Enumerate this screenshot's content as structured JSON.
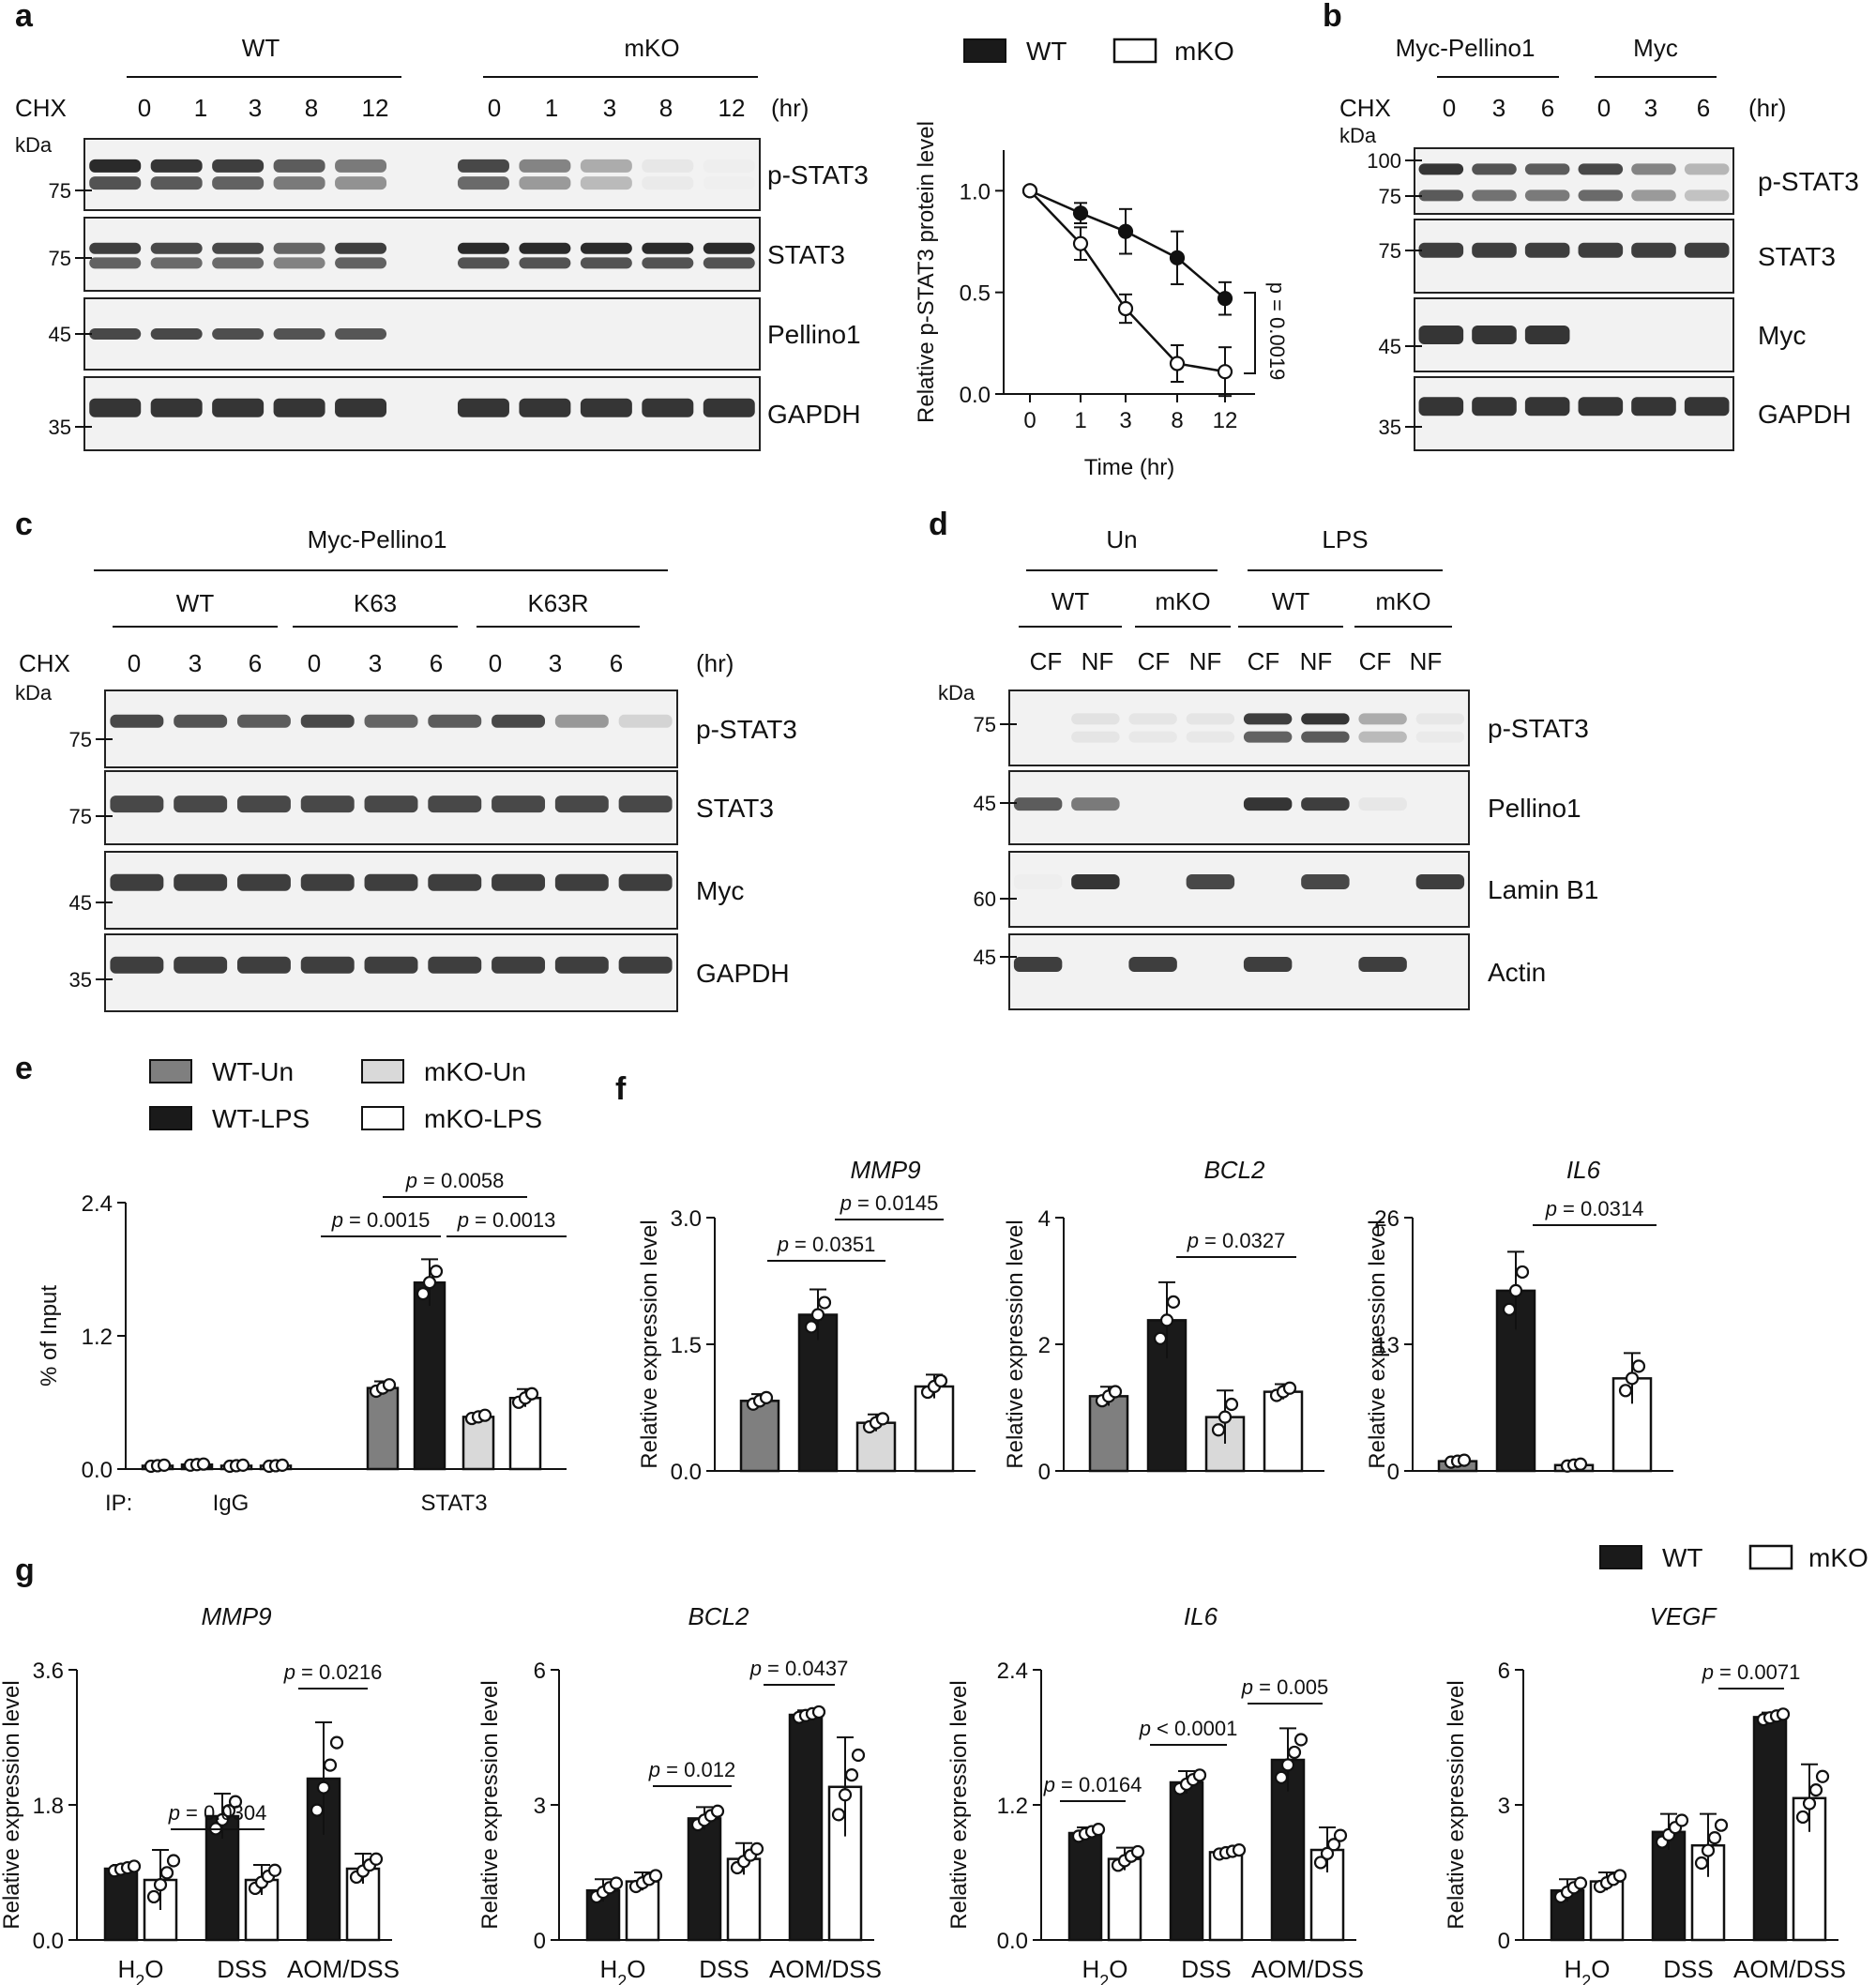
{
  "figure": {
    "panel_labels": [
      "a",
      "b",
      "c",
      "d",
      "e",
      "f",
      "g"
    ],
    "colors": {
      "wt": "#1a1a1a",
      "ko": "#ffffff",
      "wt_un": "#7f7f7f",
      "ko_un": "#d9d9d9",
      "blot_bg": "#f2f2f2",
      "band": "#2a2a2a"
    }
  },
  "panel_a": {
    "groups": [
      "WT",
      "mKO"
    ],
    "chx": "CHX",
    "hr": "(hr)",
    "kda": "kDa",
    "timepoints_wt": [
      "0",
      "1",
      "3",
      "8",
      "12"
    ],
    "timepoints_ko": [
      "0",
      "1",
      "3",
      "8",
      "12"
    ],
    "blots": [
      {
        "name": "p-STAT3",
        "mw": [
          "75"
        ]
      },
      {
        "name": "STAT3",
        "mw": [
          "75"
        ]
      },
      {
        "name": "Pellino1",
        "mw": [
          "45"
        ]
      },
      {
        "name": "GAPDH",
        "mw": [
          "35"
        ]
      }
    ]
  },
  "panel_b": {
    "groups": [
      "Myc-Pellino1",
      "Myc"
    ],
    "chx": "CHX",
    "hr": "(hr)",
    "kda": "kDa",
    "timepoints": [
      "0",
      "3",
      "6",
      "0",
      "3",
      "6"
    ],
    "blots": [
      {
        "name": "p-STAT3",
        "mw": [
          "100",
          "75"
        ]
      },
      {
        "name": "STAT3",
        "mw": [
          "75"
        ]
      },
      {
        "name": "Myc",
        "mw": [
          "45"
        ]
      },
      {
        "name": "GAPDH",
        "mw": [
          "35"
        ]
      }
    ]
  },
  "panel_c": {
    "title": "Myc-Pellino1",
    "groups": [
      "WT",
      "K63",
      "K63R"
    ],
    "chx": "CHX",
    "hr": "(hr)",
    "kda": "kDa",
    "timepoints": [
      "0",
      "3",
      "6",
      "0",
      "3",
      "6",
      "0",
      "3",
      "6"
    ],
    "blots": [
      {
        "name": "p-STAT3",
        "mw": [
          "75"
        ]
      },
      {
        "name": "STAT3",
        "mw": [
          "75"
        ]
      },
      {
        "name": "Myc",
        "mw": [
          "45"
        ]
      },
      {
        "name": "GAPDH",
        "mw": [
          "35"
        ]
      }
    ]
  },
  "panel_d": {
    "treatments": [
      "Un",
      "LPS"
    ],
    "genotypes": [
      "WT",
      "mKO",
      "WT",
      "mKO"
    ],
    "fractions": [
      "CF",
      "NF",
      "CF",
      "NF",
      "CF",
      "NF",
      "CF",
      "NF"
    ],
    "kda": "kDa",
    "blots": [
      {
        "name": "p-STAT3",
        "mw": [
          "75"
        ]
      },
      {
        "name": "Pellino1",
        "mw": [
          "45"
        ]
      },
      {
        "name": "Lamin B1",
        "mw": [
          "60"
        ]
      },
      {
        "name": "Actin",
        "mw": [
          "45"
        ]
      }
    ]
  },
  "chart_data": [
    {
      "id": "a_line",
      "type": "line",
      "ylabel": "Relative p-STAT3 protein level",
      "xlabel": "Time (hr)",
      "ylim": [
        0,
        1.2
      ],
      "yticks": [
        "0.0",
        "0.5",
        "1.0"
      ],
      "categories": [
        "0",
        "1",
        "3",
        "8",
        "12"
      ],
      "legend": [
        "WT",
        "mKO"
      ],
      "series": [
        {
          "name": "WT",
          "values": [
            1.0,
            0.89,
            0.8,
            0.67,
            0.47
          ],
          "errors": [
            0,
            0.05,
            0.11,
            0.13,
            0.08
          ],
          "filled": true
        },
        {
          "name": "mKO",
          "values": [
            1.0,
            0.74,
            0.42,
            0.15,
            0.11
          ],
          "errors": [
            0,
            0.08,
            0.07,
            0.09,
            0.12
          ],
          "filled": false
        }
      ],
      "annotation": "p = 0.0019"
    },
    {
      "id": "e",
      "type": "bar",
      "ylabel": "% of Input",
      "ylim": [
        0,
        2.4
      ],
      "yticks": [
        "0.0",
        "1.2",
        "2.4"
      ],
      "ip_label": "IP:",
      "group_labels": [
        "IgG",
        "STAT3"
      ],
      "legend": [
        "WT-Un",
        "mKO-Un",
        "WT-LPS",
        "mKO-LPS"
      ],
      "series": [
        {
          "name": "WT-Un",
          "values": [
            0.03,
            0.73
          ],
          "errors": [
            0.01,
            0.06
          ]
        },
        {
          "name": "WT-LPS",
          "values": [
            0.04,
            1.68
          ],
          "errors": [
            0.01,
            0.21
          ]
        },
        {
          "name": "mKO-Un",
          "values": [
            0.03,
            0.47
          ],
          "errors": [
            0.01,
            0.03
          ]
        },
        {
          "name": "mKO-LPS",
          "values": [
            0.03,
            0.64
          ],
          "errors": [
            0.01,
            0.08
          ]
        }
      ],
      "comparisons": [
        "p = 0.0058",
        "p = 0.0015",
        "p = 0.0013"
      ]
    },
    {
      "id": "f_mmp9",
      "type": "bar",
      "title": "MMP9",
      "ylabel": "Relative expression level",
      "ylim": [
        0,
        3.0
      ],
      "yticks": [
        "0.0",
        "1.5",
        "3.0"
      ],
      "categories": [
        "WT-Un",
        "WT-LPS",
        "mKO-Un",
        "mKO-LPS"
      ],
      "values": [
        0.83,
        1.85,
        0.57,
        1.0
      ],
      "errors": [
        0.08,
        0.3,
        0.1,
        0.14
      ],
      "comparisons": [
        "p = 0.0145",
        "p = 0.0351"
      ]
    },
    {
      "id": "f_bcl2",
      "type": "bar",
      "title": "BCL2",
      "ylabel": "Relative expression level",
      "ylim": [
        0,
        4
      ],
      "yticks": [
        "0",
        "2",
        "4"
      ],
      "categories": [
        "WT-Un",
        "WT-LPS",
        "mKO-Un",
        "mKO-LPS"
      ],
      "values": [
        1.18,
        2.38,
        0.85,
        1.25
      ],
      "errors": [
        0.15,
        0.6,
        0.42,
        0.12
      ],
      "comparisons": [
        "p = 0.0327"
      ]
    },
    {
      "id": "f_il6",
      "type": "bar",
      "title": "IL6",
      "ylabel": "Relative expression level",
      "ylim": [
        0,
        26
      ],
      "yticks": [
        "0",
        "13",
        "26"
      ],
      "categories": [
        "WT-Un",
        "WT-LPS",
        "mKO-Un",
        "mKO-LPS"
      ],
      "values": [
        1.0,
        18.5,
        0.6,
        9.5
      ],
      "errors": [
        0.2,
        4.0,
        0.2,
        2.6
      ],
      "comparisons": [
        "p = 0.0314"
      ]
    },
    {
      "id": "g_mmp9",
      "type": "bar",
      "title": "MMP9",
      "ylabel": "Relative expression level",
      "ylim": [
        0,
        3.6
      ],
      "yticks": [
        "0.0",
        "1.8",
        "3.6"
      ],
      "categories": [
        "H2O",
        "DSS",
        "AOM/DSS"
      ],
      "series": [
        {
          "name": "WT",
          "values": [
            0.95,
            1.65,
            2.15
          ],
          "errors": [
            0.05,
            0.3,
            0.75
          ]
        },
        {
          "name": "mKO",
          "values": [
            0.8,
            0.8,
            0.95
          ],
          "errors": [
            0.4,
            0.2,
            0.2
          ]
        }
      ],
      "comparisons": [
        "p = 0.0304",
        "p = 0.0216"
      ]
    },
    {
      "id": "g_bcl2",
      "type": "bar",
      "title": "BCL2",
      "ylabel": "Relative expression level",
      "ylim": [
        0,
        6
      ],
      "yticks": [
        "0",
        "3",
        "6"
      ],
      "categories": [
        "H2O",
        "DSS",
        "AOM/DSS"
      ],
      "series": [
        {
          "name": "WT",
          "values": [
            1.1,
            2.7,
            5.0
          ],
          "errors": [
            0.25,
            0.25,
            0.1
          ]
        },
        {
          "name": "mKO",
          "values": [
            1.3,
            1.8,
            3.4
          ],
          "errors": [
            0.2,
            0.35,
            1.1
          ]
        }
      ],
      "comparisons": [
        "p = 0.012",
        "p = 0.0437"
      ]
    },
    {
      "id": "g_il6",
      "type": "bar",
      "title": "IL6",
      "ylabel": "Relative expression level",
      "ylim": [
        0,
        2.4
      ],
      "yticks": [
        "0.0",
        "1.2",
        "2.4"
      ],
      "categories": [
        "H2O",
        "DSS",
        "AOM/DSS"
      ],
      "series": [
        {
          "name": "WT",
          "values": [
            0.95,
            1.4,
            1.6
          ],
          "errors": [
            0.05,
            0.1,
            0.28
          ]
        },
        {
          "name": "mKO",
          "values": [
            0.72,
            0.78,
            0.8
          ],
          "errors": [
            0.1,
            0.03,
            0.2
          ]
        }
      ],
      "comparisons": [
        "p = 0.0164",
        "p < 0.0001",
        "p = 0.005"
      ]
    },
    {
      "id": "g_vegf",
      "type": "bar",
      "title": "VEGF",
      "ylabel": "Relative expression level",
      "ylim": [
        0,
        6
      ],
      "yticks": [
        "0",
        "3",
        "6"
      ],
      "categories": [
        "H2O",
        "DSS",
        "AOM/DSS"
      ],
      "series": [
        {
          "name": "WT",
          "values": [
            1.1,
            2.4,
            4.95
          ],
          "errors": [
            0.25,
            0.4,
            0.1
          ]
        },
        {
          "name": "mKO",
          "values": [
            1.3,
            2.1,
            3.15
          ],
          "errors": [
            0.2,
            0.7,
            0.75
          ]
        }
      ],
      "comparisons": [
        "p = 0.0071"
      ]
    }
  ],
  "legend_g": [
    "WT",
    "mKO"
  ]
}
